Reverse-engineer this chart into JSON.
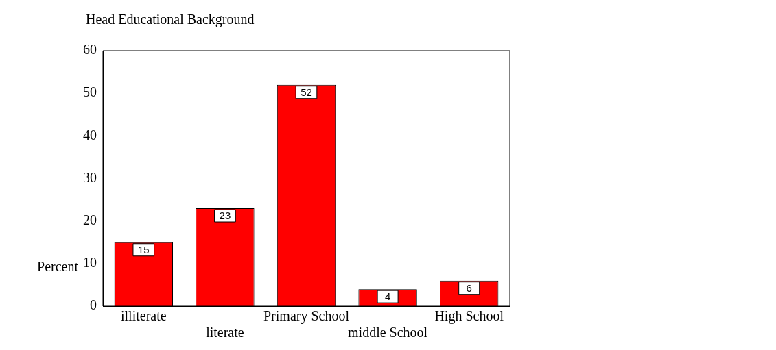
{
  "chart_data": {
    "type": "bar",
    "title": "Head Educational Background",
    "ylabel": "Percent",
    "categories": [
      "illiterate",
      "literate",
      "Primary School",
      "middle School",
      "High School"
    ],
    "values": [
      15,
      23,
      52,
      4,
      6
    ],
    "color": "#ff0000",
    "ylim": [
      0,
      60
    ],
    "yticks": [
      0,
      10,
      20,
      30,
      40,
      50,
      60
    ],
    "grid": false,
    "legend": false,
    "data_labels": true
  }
}
